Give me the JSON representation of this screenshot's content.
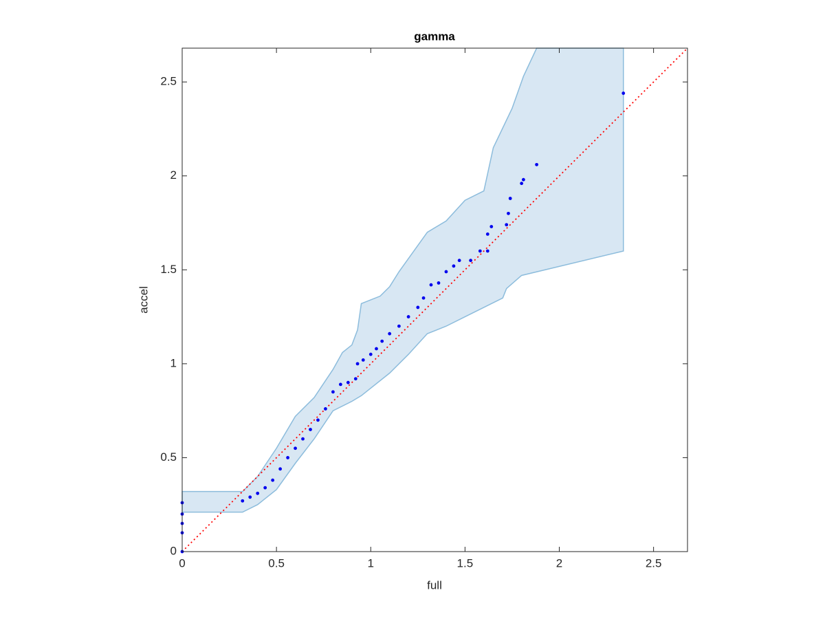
{
  "chart_data": {
    "type": "scatter",
    "title": "gamma",
    "xlabel": "full",
    "ylabel": "accel",
    "xlim": [
      0,
      2.68
    ],
    "ylim": [
      0,
      2.68
    ],
    "xticks": [
      0,
      0.5,
      1,
      1.5,
      2,
      2.5
    ],
    "yticks": [
      0,
      0.5,
      1,
      1.5,
      2,
      2.5
    ],
    "band": {
      "color": "#d8e7f3",
      "edge_color": "#8cbcdc",
      "upper": {
        "x": [
          0,
          0.32,
          0.4,
          0.5,
          0.6,
          0.7,
          0.8,
          0.85,
          0.9,
          0.93,
          0.95,
          1.05,
          1.1,
          1.15,
          1.3,
          1.4,
          1.5,
          1.6,
          1.65,
          1.75,
          1.81,
          1.88,
          2.34
        ],
        "values": [
          0.32,
          0.32,
          0.4,
          0.55,
          0.72,
          0.82,
          0.97,
          1.06,
          1.1,
          1.18,
          1.32,
          1.36,
          1.41,
          1.49,
          1.7,
          1.76,
          1.87,
          1.92,
          2.15,
          2.36,
          2.53,
          2.68,
          2.68
        ]
      },
      "lower": {
        "x": [
          0,
          0.32,
          0.4,
          0.5,
          0.6,
          0.7,
          0.8,
          0.9,
          0.95,
          1.1,
          1.2,
          1.3,
          1.4,
          1.5,
          1.6,
          1.7,
          1.72,
          1.8,
          2.34
        ],
        "values": [
          0.21,
          0.21,
          0.25,
          0.33,
          0.47,
          0.6,
          0.75,
          0.8,
          0.83,
          0.95,
          1.05,
          1.16,
          1.2,
          1.25,
          1.3,
          1.35,
          1.4,
          1.47,
          1.6
        ]
      }
    },
    "points": {
      "color": "#0000ee",
      "x": [
        0,
        0,
        0,
        0,
        0,
        0.32,
        0.36,
        0.4,
        0.44,
        0.48,
        0.52,
        0.56,
        0.6,
        0.64,
        0.68,
        0.72,
        0.76,
        0.8,
        0.84,
        0.88,
        0.92,
        0.93,
        0.96,
        1.0,
        1.03,
        1.06,
        1.1,
        1.15,
        1.2,
        1.25,
        1.28,
        1.32,
        1.36,
        1.4,
        1.44,
        1.47,
        1.53,
        1.58,
        1.62,
        1.62,
        1.64,
        1.72,
        1.73,
        1.74,
        1.8,
        1.81,
        1.88,
        2.34
      ],
      "values": [
        0,
        0.1,
        0.15,
        0.2,
        0.26,
        0.27,
        0.29,
        0.31,
        0.34,
        0.38,
        0.44,
        0.5,
        0.55,
        0.6,
        0.65,
        0.7,
        0.76,
        0.85,
        0.89,
        0.9,
        0.92,
        1.0,
        1.02,
        1.05,
        1.08,
        1.12,
        1.16,
        1.2,
        1.25,
        1.3,
        1.35,
        1.42,
        1.43,
        1.49,
        1.52,
        1.55,
        1.55,
        1.6,
        1.6,
        1.69,
        1.73,
        1.74,
        1.8,
        1.88,
        1.96,
        1.98,
        2.06,
        2.44
      ]
    },
    "reference": {
      "color": "#ff0000",
      "x": [
        0,
        2.68
      ],
      "values": [
        0,
        2.68
      ]
    }
  }
}
